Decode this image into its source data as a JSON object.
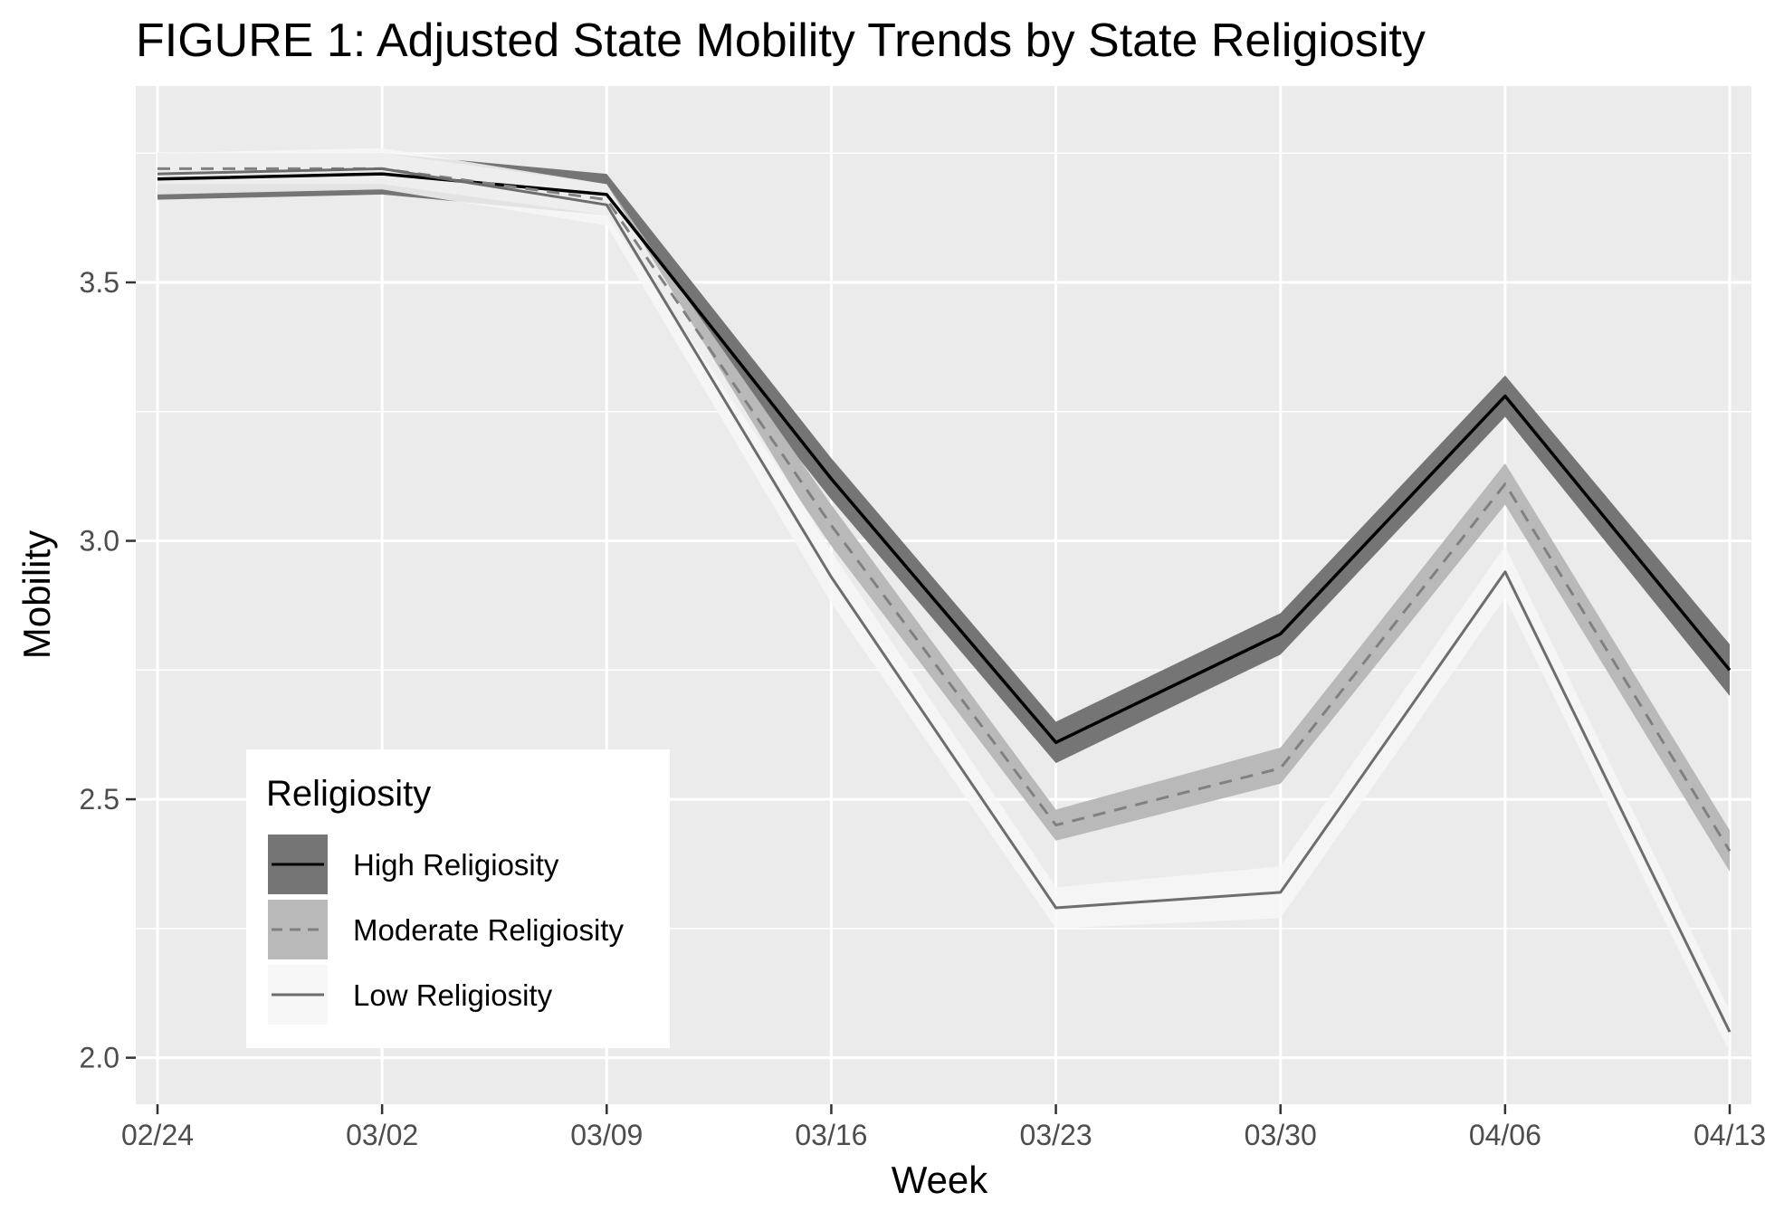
{
  "chart_data": {
    "type": "line",
    "title": "FIGURE 1: Adjusted State Mobility Trends by State Religiosity",
    "xlabel": "Week",
    "ylabel": "Mobility",
    "categories": [
      "02/24",
      "03/02",
      "03/09",
      "03/16",
      "03/23",
      "03/30",
      "04/06",
      "04/13"
    ],
    "y_ticks": [
      "2.0",
      "2.5",
      "3.0",
      "3.5"
    ],
    "ylim": [
      1.91,
      3.88
    ],
    "grid": true,
    "legend": {
      "title": "Religiosity",
      "position": "bottom-left",
      "entries": [
        "High Religiosity",
        "Moderate Religiosity",
        "Low Religiosity"
      ]
    },
    "series": [
      {
        "name": "High Religiosity",
        "values": [
          3.7,
          3.71,
          3.67,
          3.12,
          2.61,
          2.82,
          3.28,
          2.75
        ],
        "ci_lower": [
          3.66,
          3.67,
          3.63,
          3.08,
          2.57,
          2.78,
          3.24,
          2.7
        ],
        "ci_upper": [
          3.74,
          3.75,
          3.71,
          3.16,
          2.65,
          2.86,
          3.32,
          2.8
        ],
        "line_color": "#000000",
        "band_color": "#757575",
        "dash": "solid"
      },
      {
        "name": "Moderate Religiosity",
        "values": [
          3.72,
          3.72,
          3.66,
          3.03,
          2.45,
          2.56,
          3.11,
          2.4
        ],
        "ci_lower": [
          3.69,
          3.69,
          3.63,
          2.99,
          2.42,
          2.53,
          3.07,
          2.36
        ],
        "ci_upper": [
          3.75,
          3.75,
          3.69,
          3.07,
          2.48,
          2.6,
          3.15,
          2.44
        ],
        "line_color": "#808080",
        "band_color": "#b9b9b9",
        "dash": "dashed"
      },
      {
        "name": "Low Religiosity",
        "values": [
          3.71,
          3.72,
          3.65,
          2.93,
          2.29,
          2.32,
          2.94,
          2.05
        ],
        "ci_lower": [
          3.67,
          3.68,
          3.61,
          2.88,
          2.25,
          2.27,
          2.89,
          2.01
        ],
        "ci_upper": [
          3.75,
          3.76,
          3.69,
          2.98,
          2.33,
          2.37,
          2.99,
          2.09
        ],
        "line_color": "#6d6d6d",
        "band_color": "#f7f7f7",
        "dash": "solid"
      }
    ]
  }
}
